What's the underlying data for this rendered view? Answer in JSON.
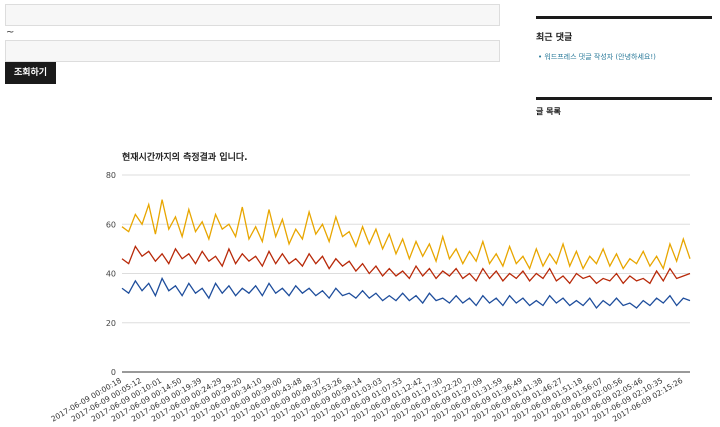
{
  "form": {
    "separator": "~",
    "button": "조회하기"
  },
  "sidebar": {
    "recent_comments_title": "최근 댓글",
    "recent_comment": "워드프레스 댓글 작성자 (안녕하세요!)",
    "posts_title": "글 목록"
  },
  "chart_data": {
    "type": "line",
    "title": "현재시간까지의 측정결과 입니다.",
    "categories": [
      "2017-06-09 00:00:18",
      null,
      null,
      "2017-06-09 00:05:12",
      null,
      null,
      "2017-06-09 00:10:01",
      null,
      null,
      "2017-06-09 00:14:50",
      null,
      null,
      "2017-06-09 00:19:39",
      null,
      null,
      "2017-06-09 00:24:29",
      null,
      null,
      "2017-06-09 00:29:20",
      null,
      null,
      "2017-06-09 00:34:10",
      null,
      null,
      "2017-06-09 00:39:00",
      null,
      null,
      "2017-06-09 00:43:48",
      null,
      null,
      "2017-06-09 00:48:37",
      null,
      null,
      "2017-06-09 00:53:26",
      null,
      null,
      "2017-06-09 00:58:14",
      null,
      null,
      "2017-06-09 01:03:03",
      null,
      null,
      "2017-06-09 01:07:53",
      null,
      null,
      "2017-06-09 01:12:42",
      null,
      null,
      "2017-06-09 01:17:30",
      null,
      null,
      "2017-06-09 01:22:20",
      null,
      null,
      "2017-06-09 01:27:09",
      null,
      null,
      "2017-06-09 01:31:59",
      null,
      null,
      "2017-06-09 01:36:49",
      null,
      null,
      "2017-06-09 01:41:38",
      null,
      null,
      "2017-06-09 01:46:27",
      null,
      null,
      "2017-06-09 01:51:18",
      null,
      null,
      "2017-06-09 01:56:07",
      null,
      null,
      "2017-06-09 02:00:56",
      null,
      null,
      "2017-06-09 02:05:46",
      null,
      null,
      "2017-06-09 02:10:35",
      null,
      null,
      "2017-06-09 02:15:26",
      null
    ],
    "series": [
      {
        "color": "#e8a600",
        "values": [
          59,
          57,
          64,
          60,
          68,
          56,
          70,
          58,
          63,
          55,
          66,
          57,
          61,
          54,
          64,
          58,
          60,
          55,
          67,
          54,
          59,
          53,
          66,
          55,
          62,
          52,
          58,
          54,
          65,
          56,
          60,
          53,
          63,
          55,
          57,
          51,
          59,
          52,
          58,
          50,
          56,
          48,
          54,
          46,
          53,
          47,
          52,
          45,
          55,
          46,
          50,
          44,
          49,
          45,
          53,
          44,
          48,
          43,
          51,
          44,
          47,
          42,
          50,
          43,
          48,
          44,
          52,
          43,
          49,
          42,
          47,
          44,
          50,
          43,
          48,
          42,
          46,
          44,
          49,
          43,
          47,
          42,
          52,
          45,
          54,
          46
        ]
      },
      {
        "color": "#b82a0a",
        "values": [
          46,
          44,
          51,
          47,
          49,
          45,
          48,
          44,
          50,
          46,
          48,
          44,
          49,
          45,
          47,
          43,
          50,
          44,
          48,
          45,
          47,
          43,
          49,
          44,
          48,
          44,
          46,
          43,
          48,
          44,
          47,
          42,
          46,
          43,
          45,
          41,
          44,
          40,
          43,
          39,
          42,
          39,
          41,
          38,
          43,
          39,
          42,
          38,
          41,
          39,
          42,
          38,
          40,
          37,
          42,
          38,
          41,
          37,
          40,
          38,
          41,
          37,
          40,
          38,
          42,
          37,
          39,
          36,
          40,
          38,
          39,
          36,
          38,
          37,
          40,
          36,
          39,
          37,
          38,
          36,
          41,
          37,
          42,
          38,
          39,
          40
        ]
      },
      {
        "color": "#1f4e9c",
        "values": [
          34,
          32,
          37,
          33,
          36,
          31,
          38,
          33,
          35,
          31,
          36,
          32,
          34,
          30,
          36,
          32,
          35,
          31,
          34,
          32,
          35,
          31,
          36,
          32,
          34,
          31,
          35,
          32,
          34,
          31,
          33,
          30,
          34,
          31,
          32,
          30,
          33,
          30,
          32,
          29,
          31,
          29,
          32,
          29,
          31,
          28,
          32,
          29,
          30,
          28,
          31,
          28,
          30,
          27,
          31,
          28,
          30,
          27,
          31,
          28,
          30,
          27,
          29,
          27,
          31,
          28,
          30,
          27,
          29,
          27,
          30,
          26,
          29,
          27,
          30,
          27,
          28,
          26,
          29,
          27,
          30,
          28,
          31,
          27,
          30,
          29
        ]
      }
    ],
    "ylim": [
      0,
      80
    ],
    "yticks": [
      0,
      20,
      40,
      60,
      80
    ],
    "grid": true
  }
}
